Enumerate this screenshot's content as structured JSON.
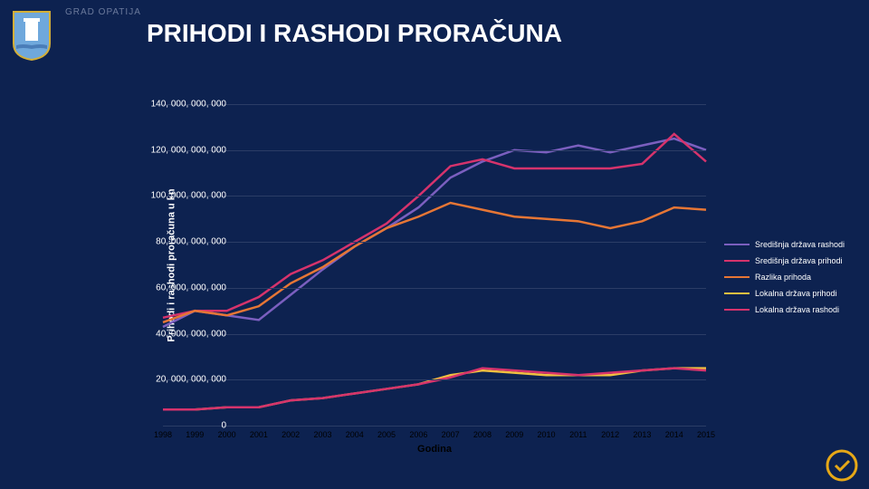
{
  "header": {
    "subtitle": "GRAD OPATIJA",
    "subtitle_color": "#6b7a9c",
    "title": "PRIHODI I RASHODI PRORAČUNA",
    "title_color": "#ffffff"
  },
  "chart": {
    "type": "line",
    "background_color": "#0d2250",
    "grid_color": "#2b3d66",
    "ylabel": "Prihodi i rashodi proračuna u kn",
    "xlabel": "Godina",
    "ylim": [
      0,
      140000000000
    ],
    "ytick_step": 20000000000,
    "yticks": [
      {
        "v": 0,
        "label": "0"
      },
      {
        "v": 20000000000,
        "label": "20, 000, 000, 000"
      },
      {
        "v": 40000000000,
        "label": "40, 000, 000, 000"
      },
      {
        "v": 60000000000,
        "label": "60, 000, 000, 000"
      },
      {
        "v": 80000000000,
        "label": "80, 000, 000, 000"
      },
      {
        "v": 100000000000,
        "label": "100, 000, 000, 000"
      },
      {
        "v": 120000000000,
        "label": "120, 000, 000, 000"
      },
      {
        "v": 140000000000,
        "label": "140, 000, 000, 000"
      }
    ],
    "x_categories": [
      "1998",
      "1999",
      "2000",
      "2001",
      "2002",
      "2003",
      "2004",
      "2005",
      "2006",
      "2007",
      "2008",
      "2009",
      "2010",
      "2011",
      "2012",
      "2013",
      "2014",
      "2015"
    ],
    "line_width": 2.5,
    "label_fontsize_pt": 8,
    "series": [
      {
        "name": "Središnja država rashodi",
        "color": "#7b5fbf",
        "values": [
          43,
          50,
          48,
          46,
          57,
          68,
          78,
          86,
          95,
          108,
          115,
          120,
          119,
          122,
          119,
          122,
          125,
          120
        ]
      },
      {
        "name": "Središnja država prihodi",
        "color": "#d6336c",
        "values": [
          47,
          50,
          50,
          56,
          66,
          72,
          80,
          88,
          100,
          113,
          116,
          112,
          112,
          112,
          112,
          114,
          127,
          115
        ]
      },
      {
        "name": "Razlika prihoda",
        "color": "#e67635",
        "values": [
          45,
          50,
          48,
          52,
          62,
          69,
          78,
          86,
          91,
          97,
          94,
          91,
          90,
          89,
          86,
          89,
          95,
          94
        ]
      },
      {
        "name": "Lokalna država prihodi",
        "color": "#f0c040",
        "values": [
          7,
          7,
          8,
          8,
          11,
          12,
          14,
          16,
          18,
          22,
          24,
          23,
          22,
          22,
          22,
          24,
          25,
          25
        ]
      },
      {
        "name": "Lokalna država rashodi",
        "color": "#d6336c",
        "values": [
          7,
          7,
          8,
          8,
          11,
          12,
          14,
          16,
          18,
          21,
          25,
          24,
          23,
          22,
          23,
          24,
          25,
          24
        ]
      }
    ]
  },
  "crest_colors": {
    "shield": "#6fa8dc",
    "frame": "#d4af37",
    "tower": "#ffffff"
  },
  "badge_color": "#e6a817"
}
